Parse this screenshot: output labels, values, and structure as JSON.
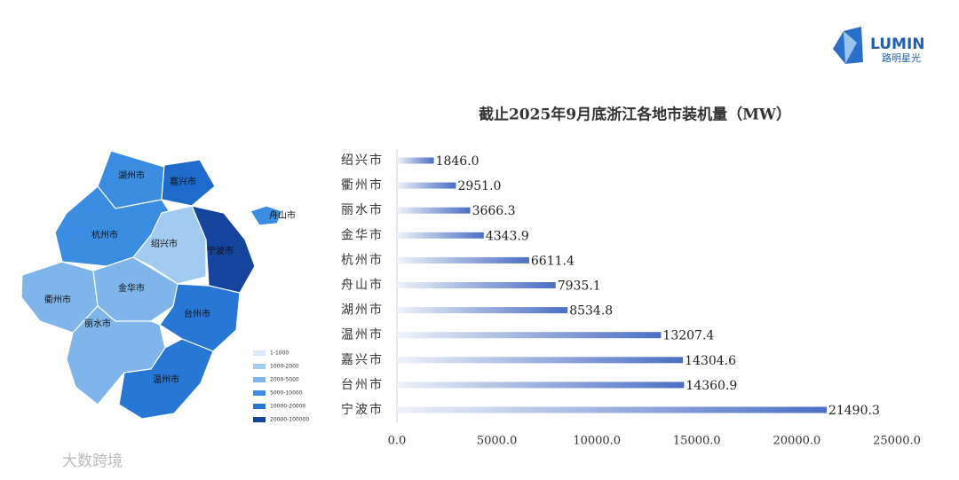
{
  "logo": {
    "brand": "LUMIN",
    "subtitle": "路明星光"
  },
  "watermark": "大数跨境",
  "map": {
    "regions": [
      {
        "label": "湖州市",
        "color": "#3a8de0"
      },
      {
        "label": "嘉兴市",
        "color": "#1f6bcc"
      },
      {
        "label": "杭州市",
        "color": "#3a8de0"
      },
      {
        "label": "绍兴市",
        "color": "#a3cbf1"
      },
      {
        "label": "宁波市",
        "color": "#14449c"
      },
      {
        "label": "舟山市",
        "color": "#3a8de0"
      },
      {
        "label": "衢州市",
        "color": "#7fb5ea"
      },
      {
        "label": "金华市",
        "color": "#7fb5ea"
      },
      {
        "label": "台州市",
        "color": "#2877d4"
      },
      {
        "label": "丽水市",
        "color": "#7fb5ea"
      },
      {
        "label": "温州市",
        "color": "#2877d4"
      }
    ],
    "legend": [
      {
        "label": "1-1000",
        "color": "#dcebfa"
      },
      {
        "label": "1000-2000",
        "color": "#a3cbf1"
      },
      {
        "label": "2000-5000",
        "color": "#7fb5ea"
      },
      {
        "label": "5000-10000",
        "color": "#3a8de0"
      },
      {
        "label": "10000-20000",
        "color": "#2877d4"
      },
      {
        "label": "20000-100000",
        "color": "#14449c"
      }
    ]
  },
  "chart_data": {
    "type": "barh",
    "title": "截止2025年9月底浙江各地市装机量（MW）",
    "categories": [
      "绍兴市",
      "衢州市",
      "丽水市",
      "金华市",
      "杭州市",
      "舟山市",
      "湖州市",
      "温州市",
      "嘉兴市",
      "台州市",
      "宁波市"
    ],
    "values": [
      1846,
      2951,
      3666.3,
      4343.9,
      6611.4,
      7935.1,
      8534.8,
      13207.4,
      14304.6,
      14360.9,
      21490.3
    ],
    "value_labels": [
      "1846.0",
      "2951.0",
      "3666.3",
      "4343.9",
      "6611.4",
      "7935.1",
      "8534.8",
      "13207.4",
      "14304.6",
      "14360.9",
      "21490.3"
    ],
    "color": "#4a6fc4",
    "xlim": [
      0,
      25000
    ],
    "xticks": [
      {
        "value": 0,
        "label": "0.0"
      },
      {
        "value": 5000,
        "label": "5000.0"
      },
      {
        "value": 10000,
        "label": "10000.0"
      },
      {
        "value": 15000,
        "label": "15000.0"
      },
      {
        "value": 20000,
        "label": "20000.0"
      },
      {
        "value": 25000,
        "label": "25000.0"
      }
    ]
  }
}
